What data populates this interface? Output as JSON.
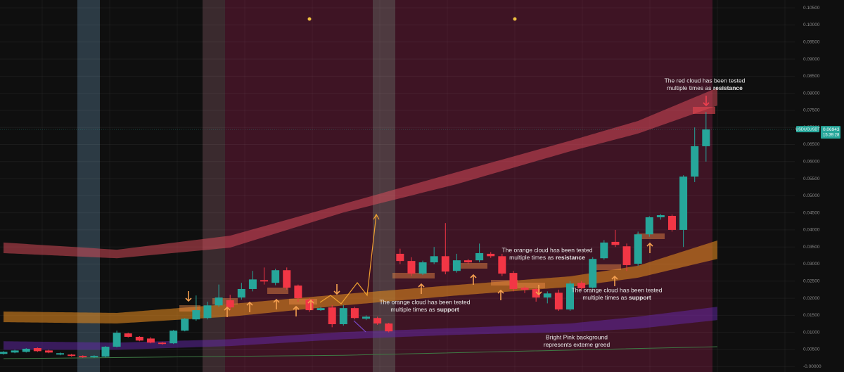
{
  "chart_data": {
    "type": "candlestick",
    "ylim": [
      -0.0016,
      0.1073
    ],
    "yticks": [
      {
        "value": 0.105,
        "label": "0.10500"
      },
      {
        "value": 0.1,
        "label": "0.10000"
      },
      {
        "value": 0.095,
        "label": "0.09500"
      },
      {
        "value": 0.09,
        "label": "0.09000"
      },
      {
        "value": 0.085,
        "label": "0.08500"
      },
      {
        "value": 0.08,
        "label": "0.08000"
      },
      {
        "value": 0.075,
        "label": "0.07500"
      },
      {
        "value": 0.07,
        "label": "0.07000"
      },
      {
        "value": 0.065,
        "label": "0.06500"
      },
      {
        "value": 0.06,
        "label": "0.06000"
      },
      {
        "value": 0.055,
        "label": "0.05500"
      },
      {
        "value": 0.05,
        "label": "0.05000"
      },
      {
        "value": 0.045,
        "label": "0.04500"
      },
      {
        "value": 0.04,
        "label": "0.04000"
      },
      {
        "value": 0.035,
        "label": "0.03500"
      },
      {
        "value": 0.03,
        "label": "0.03000"
      },
      {
        "value": 0.025,
        "label": "0.02500"
      },
      {
        "value": 0.02,
        "label": "0.02000"
      },
      {
        "value": 0.015,
        "label": "0.01500"
      },
      {
        "value": 0.01,
        "label": "0.01000"
      },
      {
        "value": 0.005,
        "label": "0.00500"
      },
      {
        "value": 0,
        "label": "-0.00000"
      }
    ],
    "up_color": "#26a69a",
    "down_color": "#f23645",
    "grid": true,
    "open": [
      0.0037,
      0.0041,
      0.0043,
      0.0054,
      0.0047,
      0.0035,
      0.0035,
      0.0031,
      0.0027,
      0.0029,
      0.0058,
      0.0097,
      0.0087,
      0.0082,
      0.007,
      0.0068,
      0.0105,
      0.0138,
      0.0142,
      0.0179,
      0.0194,
      0.0202,
      0.0227,
      0.0253,
      0.0245,
      0.0282,
      0.0237,
      0.0196,
      0.0165,
      0.0173,
      0.0124,
      0.0171,
      0.014,
      0.0142,
      0.0126,
      0.033,
      0.0309,
      0.0272,
      0.0305,
      0.0323,
      0.028,
      0.0311,
      0.0311,
      0.033,
      0.0323,
      0.0274,
      0.0231,
      0.0227,
      0.0202,
      0.0216,
      0.0167,
      0.0245,
      0.0231,
      0.0317,
      0.0365,
      0.0352,
      0.0301,
      0.0387,
      0.0437,
      0.0441,
      0.04,
      0.0556,
      0.0645
    ],
    "high": [
      0.0045,
      0.0049,
      0.0054,
      0.0056,
      0.0049,
      0.0041,
      0.0037,
      0.0033,
      0.0033,
      0.006,
      0.0105,
      0.0099,
      0.0089,
      0.0086,
      0.0072,
      0.0107,
      0.0142,
      0.0208,
      0.019,
      0.024,
      0.021,
      0.0245,
      0.028,
      0.029,
      0.0286,
      0.029,
      0.024,
      0.02,
      0.0175,
      0.018,
      0.018,
      0.0175,
      0.015,
      0.0146,
      0.0128,
      0.0345,
      0.032,
      0.031,
      0.035,
      0.042,
      0.033,
      0.0315,
      0.036,
      0.0335,
      0.033,
      0.028,
      0.0235,
      0.023,
      0.022,
      0.0225,
      0.025,
      0.025,
      0.032,
      0.037,
      0.04,
      0.036,
      0.0395,
      0.044,
      0.0446,
      0.0445,
      0.056,
      0.07,
      0.0745
    ],
    "low": [
      0.0035,
      0.0039,
      0.0041,
      0.0043,
      0.0039,
      0.0033,
      0.0029,
      0.0025,
      0.0025,
      0.0027,
      0.0056,
      0.0085,
      0.0074,
      0.0068,
      0.0064,
      0.0066,
      0.0103,
      0.0134,
      0.0138,
      0.0175,
      0.0165,
      0.0196,
      0.022,
      0.024,
      0.0238,
      0.0225,
      0.019,
      0.016,
      0.0163,
      0.0115,
      0.012,
      0.0138,
      0.0136,
      0.0122,
      0.01,
      0.03,
      0.0265,
      0.0268,
      0.03,
      0.027,
      0.0275,
      0.03,
      0.0305,
      0.0318,
      0.0265,
      0.022,
      0.0215,
      0.019,
      0.0185,
      0.0163,
      0.0163,
      0.0225,
      0.0228,
      0.0313,
      0.035,
      0.028,
      0.0295,
      0.038,
      0.043,
      0.0395,
      0.035,
      0.054,
      0.06
    ],
    "close": [
      0.0043,
      0.0047,
      0.0052,
      0.0045,
      0.0041,
      0.0039,
      0.0031,
      0.0027,
      0.0031,
      0.0058,
      0.0099,
      0.0087,
      0.0076,
      0.007,
      0.0066,
      0.0105,
      0.014,
      0.0165,
      0.0179,
      0.0202,
      0.0173,
      0.0227,
      0.0255,
      0.0249,
      0.0282,
      0.0231,
      0.02,
      0.0165,
      0.0171,
      0.0124,
      0.0171,
      0.0142,
      0.0146,
      0.0126,
      0.0103,
      0.0309,
      0.0272,
      0.0305,
      0.0323,
      0.0278,
      0.0311,
      0.0305,
      0.0332,
      0.0323,
      0.0272,
      0.0227,
      0.0225,
      0.0202,
      0.0214,
      0.0167,
      0.0243,
      0.0229,
      0.0315,
      0.0363,
      0.0356,
      0.0297,
      0.0387,
      0.0437,
      0.0443,
      0.04,
      0.0556,
      0.0645,
      0.0694
    ],
    "bands": [
      {
        "color": "rgba(226,78,92,0.5)",
        "x": [
          0,
          10,
          20,
          30,
          40,
          50,
          56,
          63
        ],
        "upper": [
          0.0363,
          0.0342,
          0.0383,
          0.0476,
          0.0569,
          0.0661,
          0.0719,
          0.0816
        ],
        "lower": [
          0.0332,
          0.0317,
          0.0348,
          0.0451,
          0.0534,
          0.063,
          0.0682,
          0.0764
        ]
      },
      {
        "color": "rgba(214,130,30,0.62)",
        "x": [
          0,
          10,
          20,
          30,
          40,
          50,
          56,
          63
        ],
        "upper": [
          0.0161,
          0.0157,
          0.0183,
          0.0212,
          0.0239,
          0.0264,
          0.0295,
          0.0369
        ],
        "lower": [
          0.013,
          0.0126,
          0.0146,
          0.0179,
          0.0208,
          0.0233,
          0.026,
          0.0315
        ]
      },
      {
        "color": "rgba(100,40,170,0.5)",
        "x": [
          0,
          10,
          20,
          30,
          40,
          50,
          56,
          63
        ],
        "upper": [
          0.0074,
          0.007,
          0.008,
          0.0101,
          0.0113,
          0.0126,
          0.0146,
          0.0175
        ],
        "lower": [
          0.0049,
          0.0049,
          0.006,
          0.008,
          0.0093,
          0.0101,
          0.0111,
          0.0136
        ]
      }
    ],
    "line": {
      "color": "#3f7a45",
      "x": [
        0,
        30,
        63
      ],
      "values": [
        0.0023,
        0.0033,
        0.0058
      ]
    },
    "price_tag": {
      "symbol": "USDUCUSDT",
      "price": "0.06943",
      "time": "15:39:28"
    },
    "annotations": [
      {
        "line1": "The red cloud has been tested",
        "line2": "multiple times as",
        "bold": "resistance"
      },
      {
        "line1": "The orange cloud has been tested",
        "line2": "multiple times as",
        "bold": "resistance"
      },
      {
        "line1": "The orange cloud has been tested",
        "line2": "multiple times as",
        "bold": "support"
      },
      {
        "line1": "The orange cloud has been tested",
        "line2": "multiple times as",
        "bold": "support"
      },
      {
        "line1": "Bright Pink background",
        "line2": "represents exteme greed"
      }
    ]
  }
}
